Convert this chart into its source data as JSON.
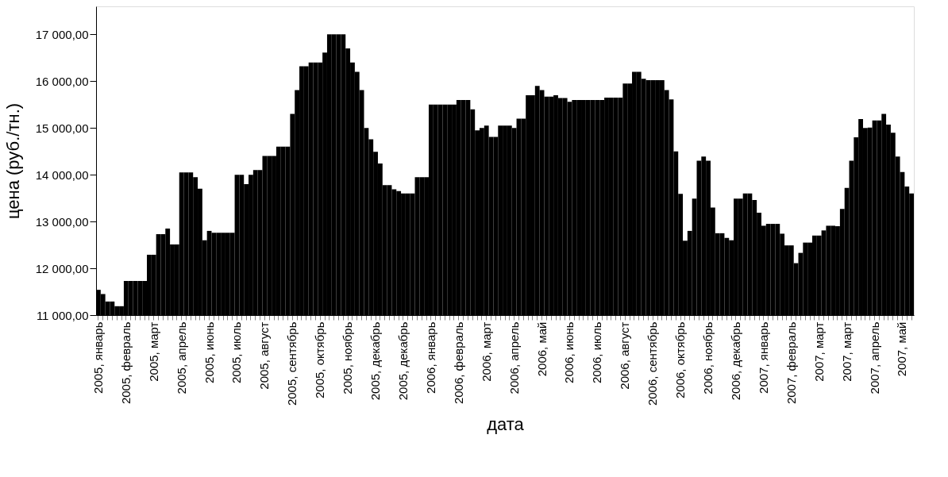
{
  "chart_data": {
    "type": "bar",
    "xlabel": "дата",
    "ylabel": "цена (руб./тн.)",
    "color": "#000000",
    "ylim": [
      11000,
      17600
    ],
    "yticks": [
      {
        "value": 11000,
        "label": "11 000,00"
      },
      {
        "value": 12000,
        "label": "12 000,00"
      },
      {
        "value": 13000,
        "label": "13 000,00"
      },
      {
        "value": 14000,
        "label": "14 000,00"
      },
      {
        "value": 15000,
        "label": "15 000,00"
      },
      {
        "value": 16000,
        "label": "16 000,00"
      },
      {
        "value": 17000,
        "label": "17 000,00"
      }
    ],
    "categories": [
      "2005, январь",
      null,
      null,
      null,
      null,
      null,
      "2005, февраль",
      null,
      null,
      null,
      null,
      null,
      "2005, март",
      null,
      null,
      null,
      null,
      null,
      "2005, апрель",
      null,
      null,
      null,
      null,
      null,
      "2005, июнь",
      null,
      null,
      null,
      null,
      null,
      "2005, июль",
      null,
      null,
      null,
      null,
      null,
      "2005, август",
      null,
      null,
      null,
      null,
      null,
      "2005, сентябрь",
      null,
      null,
      null,
      null,
      null,
      "2005, октябрь",
      null,
      null,
      null,
      null,
      null,
      "2005, ноябрь",
      null,
      null,
      null,
      null,
      null,
      "2005, декабрь",
      null,
      null,
      null,
      null,
      null,
      "2005, декабрь",
      null,
      null,
      null,
      null,
      null,
      "2006, январь",
      null,
      null,
      null,
      null,
      null,
      "2006, февраль",
      null,
      null,
      null,
      null,
      null,
      "2006, март",
      null,
      null,
      null,
      null,
      null,
      "2006, апрель",
      null,
      null,
      null,
      null,
      null,
      "2006, май",
      null,
      null,
      null,
      null,
      null,
      "2006, июнь",
      null,
      null,
      null,
      null,
      null,
      "2006, июль",
      null,
      null,
      null,
      null,
      null,
      "2006, август",
      null,
      null,
      null,
      null,
      null,
      "2006, сентябрь",
      null,
      null,
      null,
      null,
      null,
      "2006, октябрь",
      null,
      null,
      null,
      null,
      null,
      "2006, ноябрь",
      null,
      null,
      null,
      null,
      null,
      "2006, декабрь",
      null,
      null,
      null,
      null,
      null,
      "2007, январь",
      null,
      null,
      null,
      null,
      null,
      "2007, февраль",
      null,
      null,
      null,
      null,
      null,
      "2007, март",
      null,
      null,
      null,
      null,
      null,
      "2007, март",
      null,
      null,
      null,
      null,
      null,
      "2007, апрель",
      null,
      null,
      null,
      null,
      null,
      "2007, май",
      null,
      null
    ],
    "values": [
      11540,
      11450,
      11290,
      11290,
      11190,
      11190,
      11730,
      11730,
      11730,
      11730,
      11730,
      12290,
      12290,
      12730,
      12730,
      12850,
      12510,
      12510,
      14050,
      14050,
      14050,
      13950,
      13700,
      12600,
      12800,
      12760,
      12760,
      12760,
      12760,
      12760,
      14000,
      14000,
      13800,
      14000,
      14100,
      14100,
      14400,
      14400,
      14400,
      14600,
      14600,
      14600,
      15300,
      15810,
      16320,
      16320,
      16400,
      16400,
      16400,
      16610,
      17000,
      17000,
      17000,
      17000,
      16700,
      16400,
      16200,
      15810,
      15000,
      14760,
      14490,
      14240,
      13780,
      13780,
      13690,
      13650,
      13600,
      13600,
      13600,
      13950,
      13950,
      13950,
      15500,
      15500,
      15500,
      15500,
      15500,
      15500,
      15600,
      15600,
      15600,
      15400,
      14950,
      15000,
      15050,
      14810,
      14810,
      15050,
      15050,
      15050,
      15000,
      15200,
      15200,
      15700,
      15700,
      15900,
      15810,
      15670,
      15670,
      15700,
      15640,
      15640,
      15560,
      15600,
      15600,
      15600,
      15600,
      15600,
      15600,
      15600,
      15650,
      15650,
      15650,
      15650,
      15950,
      15950,
      16200,
      16200,
      16050,
      16020,
      16020,
      16020,
      16020,
      15810,
      15610,
      14500,
      13590,
      12590,
      12800,
      13490,
      14300,
      14390,
      14300,
      13300,
      12750,
      12750,
      12650,
      12600,
      13490,
      13490,
      13600,
      13600,
      13460,
      13190,
      12910,
      12950,
      12950,
      12950,
      12740,
      12490,
      12490,
      12110,
      12330,
      12550,
      12550,
      12700,
      12700,
      12810,
      12910,
      12910,
      12900,
      13270,
      13720,
      14300,
      14800,
      15190,
      15000,
      15010,
      15160,
      15160,
      15300,
      15070,
      14900,
      14390,
      14060,
      13750,
      13600
    ]
  }
}
